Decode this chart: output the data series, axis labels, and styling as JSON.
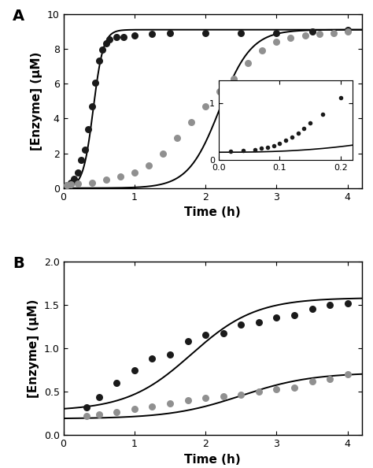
{
  "panel_A": {
    "label": "A",
    "ylim": [
      0,
      10
    ],
    "yticks": [
      0,
      2,
      4,
      6,
      8,
      10
    ],
    "xlim": [
      0,
      4.2
    ],
    "xticks": [
      0,
      1,
      2,
      3,
      4
    ],
    "ylabel": "[Enzyme] (μM)",
    "xlabel": "Time (h)",
    "black_dots": [
      [
        0.05,
        0.15
      ],
      [
        0.1,
        0.3
      ],
      [
        0.15,
        0.55
      ],
      [
        0.2,
        0.9
      ],
      [
        0.25,
        1.6
      ],
      [
        0.3,
        2.2
      ],
      [
        0.35,
        3.4
      ],
      [
        0.4,
        4.7
      ],
      [
        0.45,
        6.05
      ],
      [
        0.5,
        7.3
      ],
      [
        0.55,
        7.95
      ],
      [
        0.6,
        8.3
      ],
      [
        0.65,
        8.55
      ],
      [
        0.75,
        8.7
      ],
      [
        0.85,
        8.7
      ],
      [
        1.0,
        8.75
      ],
      [
        1.25,
        8.85
      ],
      [
        1.5,
        8.9
      ],
      [
        2.0,
        8.9
      ],
      [
        2.5,
        8.9
      ],
      [
        3.0,
        8.92
      ],
      [
        3.5,
        9.0
      ],
      [
        4.0,
        9.1
      ]
    ],
    "gray_dots": [
      [
        0.05,
        0.15
      ],
      [
        0.1,
        0.2
      ],
      [
        0.2,
        0.25
      ],
      [
        0.4,
        0.3
      ],
      [
        0.6,
        0.5
      ],
      [
        0.8,
        0.65
      ],
      [
        1.0,
        0.9
      ],
      [
        1.2,
        1.3
      ],
      [
        1.4,
        2.0
      ],
      [
        1.6,
        2.9
      ],
      [
        1.8,
        3.8
      ],
      [
        2.0,
        4.7
      ],
      [
        2.2,
        5.55
      ],
      [
        2.4,
        6.3
      ],
      [
        2.6,
        7.2
      ],
      [
        2.8,
        7.9
      ],
      [
        3.0,
        8.4
      ],
      [
        3.2,
        8.65
      ],
      [
        3.4,
        8.75
      ],
      [
        3.6,
        8.85
      ],
      [
        3.8,
        8.9
      ],
      [
        4.0,
        9.0
      ]
    ],
    "black_line_params": {
      "L": 9.1,
      "k": 14.0,
      "x0": 0.42
    },
    "gray_line_params": {
      "L": 9.1,
      "k": 4.5,
      "x0": 2.2
    },
    "inset": {
      "xlim": [
        0,
        0.22
      ],
      "ylim": [
        0,
        1.4
      ],
      "xticks": [
        0,
        0.1,
        0.2
      ],
      "yticks": [
        0,
        1
      ],
      "dots": [
        [
          0.02,
          0.15
        ],
        [
          0.04,
          0.17
        ],
        [
          0.06,
          0.19
        ],
        [
          0.07,
          0.21
        ],
        [
          0.08,
          0.23
        ],
        [
          0.09,
          0.26
        ],
        [
          0.1,
          0.3
        ],
        [
          0.11,
          0.35
        ],
        [
          0.12,
          0.4
        ],
        [
          0.13,
          0.47
        ],
        [
          0.14,
          0.55
        ],
        [
          0.15,
          0.65
        ],
        [
          0.17,
          0.8
        ],
        [
          0.2,
          1.1
        ]
      ],
      "line_params": {
        "a": 0.14,
        "b": 5.5,
        "c": 2.5
      }
    }
  },
  "panel_B": {
    "label": "B",
    "ylim": [
      0,
      2.0
    ],
    "yticks": [
      0,
      0.5,
      1.0,
      1.5,
      2.0
    ],
    "xlim": [
      0,
      4.2
    ],
    "xticks": [
      0,
      1,
      2,
      3,
      4
    ],
    "ylabel": "[Enzyme] (μM)",
    "xlabel": "Time (h)",
    "black_dots": [
      [
        0.33,
        0.32
      ],
      [
        0.5,
        0.44
      ],
      [
        0.75,
        0.6
      ],
      [
        1.0,
        0.75
      ],
      [
        1.25,
        0.88
      ],
      [
        1.5,
        0.93
      ],
      [
        1.75,
        1.08
      ],
      [
        2.0,
        1.15
      ],
      [
        2.25,
        1.17
      ],
      [
        2.5,
        1.27
      ],
      [
        2.75,
        1.3
      ],
      [
        3.0,
        1.35
      ],
      [
        3.25,
        1.38
      ],
      [
        3.5,
        1.45
      ],
      [
        3.75,
        1.5
      ],
      [
        4.0,
        1.52
      ]
    ],
    "gray_dots": [
      [
        0.33,
        0.22
      ],
      [
        0.5,
        0.24
      ],
      [
        0.75,
        0.27
      ],
      [
        1.0,
        0.3
      ],
      [
        1.25,
        0.33
      ],
      [
        1.5,
        0.37
      ],
      [
        1.75,
        0.4
      ],
      [
        2.0,
        0.43
      ],
      [
        2.25,
        0.45
      ],
      [
        2.5,
        0.47
      ],
      [
        2.75,
        0.5
      ],
      [
        3.0,
        0.53
      ],
      [
        3.25,
        0.55
      ],
      [
        3.5,
        0.62
      ],
      [
        3.75,
        0.65
      ],
      [
        4.0,
        0.7
      ]
    ],
    "black_line_params": {
      "L": 1.58,
      "k": 2.2,
      "x0": 1.8
    },
    "gray_line_params": {
      "L": 0.72,
      "k": 2.0,
      "x0": 2.5
    }
  },
  "background_color": "#ffffff",
  "dot_color_black": "#1a1a1a",
  "dot_color_gray": "#909090",
  "line_color": "#000000",
  "dot_size": 42,
  "fontsize_label": 11,
  "fontsize_axis": 10,
  "fontsize_tick": 9
}
